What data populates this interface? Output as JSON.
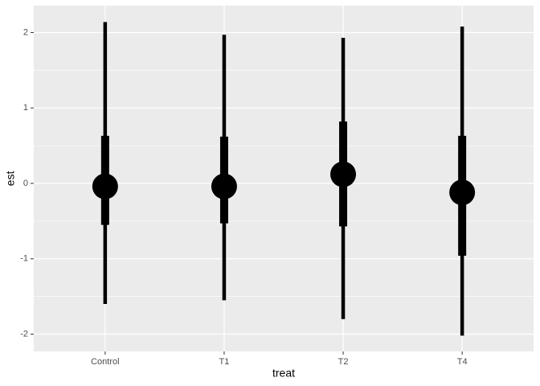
{
  "chart_data": {
    "type": "pointrange",
    "x_label": "treat",
    "y_label": "est",
    "categories": [
      "Control",
      "T1",
      "T2",
      "T4"
    ],
    "values": [
      -0.04,
      -0.04,
      0.12,
      -0.12
    ],
    "inner_low": [
      -0.55,
      -0.53,
      -0.57,
      -0.96
    ],
    "inner_high": [
      0.63,
      0.62,
      0.82,
      0.63
    ],
    "outer_low": [
      -1.6,
      -1.55,
      -1.8,
      -2.02
    ],
    "outer_high": [
      2.14,
      1.97,
      1.93,
      2.08
    ],
    "color": "#000000",
    "ylim": [
      -2.229,
      2.357
    ],
    "yticks": [
      -2,
      -1,
      0,
      1,
      2
    ],
    "grid": true
  }
}
